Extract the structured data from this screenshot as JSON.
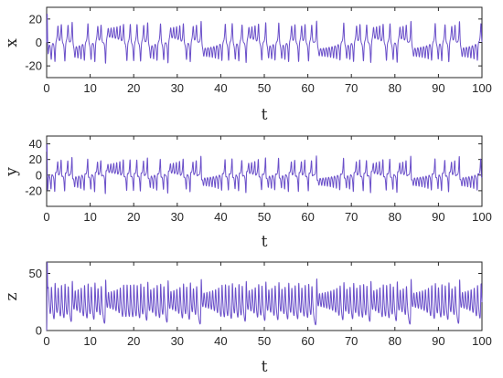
{
  "figure": {
    "background": "#ffffff",
    "axes_color": "#262626"
  },
  "chart_data": [
    {
      "type": "line",
      "title": "",
      "xlabel": "t",
      "ylabel": "x",
      "xlim": [
        0,
        100
      ],
      "ylim": [
        -30,
        30
      ],
      "xticks": [
        "0",
        "10",
        "20",
        "30",
        "40",
        "50",
        "60",
        "70",
        "80",
        "90",
        "100"
      ],
      "yticks": [
        "-20",
        "0",
        "20"
      ],
      "grid": false,
      "legend": "none",
      "series": [
        {
          "color": "#6a4fc9",
          "signal": {
            "model": "lorenz",
            "component": "x",
            "initial": [
              0,
              30,
              0
            ],
            "dt": 0.004
          },
          "samples": "continuous oscillation between about -20 and 22"
        }
      ]
    },
    {
      "type": "line",
      "title": "",
      "xlabel": "t",
      "ylabel": "y",
      "xlim": [
        0,
        100
      ],
      "ylim": [
        -40,
        50
      ],
      "xticks": [
        "0",
        "10",
        "20",
        "30",
        "40",
        "50",
        "60",
        "70",
        "80",
        "90",
        "100"
      ],
      "yticks": [
        "-20",
        "0",
        "20",
        "40"
      ],
      "grid": false,
      "legend": "none",
      "series": [
        {
          "color": "#6a4fc9",
          "signal": {
            "model": "lorenz",
            "component": "y",
            "initial": [
              0,
              30,
              0
            ],
            "dt": 0.004
          },
          "samples": "continuous oscillation between about -27 and 28"
        }
      ]
    },
    {
      "type": "line",
      "title": "",
      "xlabel": "t",
      "ylabel": "z",
      "xlim": [
        0,
        100
      ],
      "ylim": [
        0,
        60
      ],
      "xticks": [
        "0",
        "10",
        "20",
        "30",
        "40",
        "50",
        "60",
        "70",
        "80",
        "90",
        "100"
      ],
      "yticks": [
        "0",
        "50"
      ],
      "grid": false,
      "legend": "none",
      "series": [
        {
          "color": "#6a4fc9",
          "signal": {
            "model": "lorenz",
            "component": "z",
            "initial": [
              0,
              30,
              0
            ],
            "dt": 0.004
          },
          "samples": "starts near 0, rises to about 58, then oscillates between about 10 and 48"
        }
      ]
    }
  ]
}
